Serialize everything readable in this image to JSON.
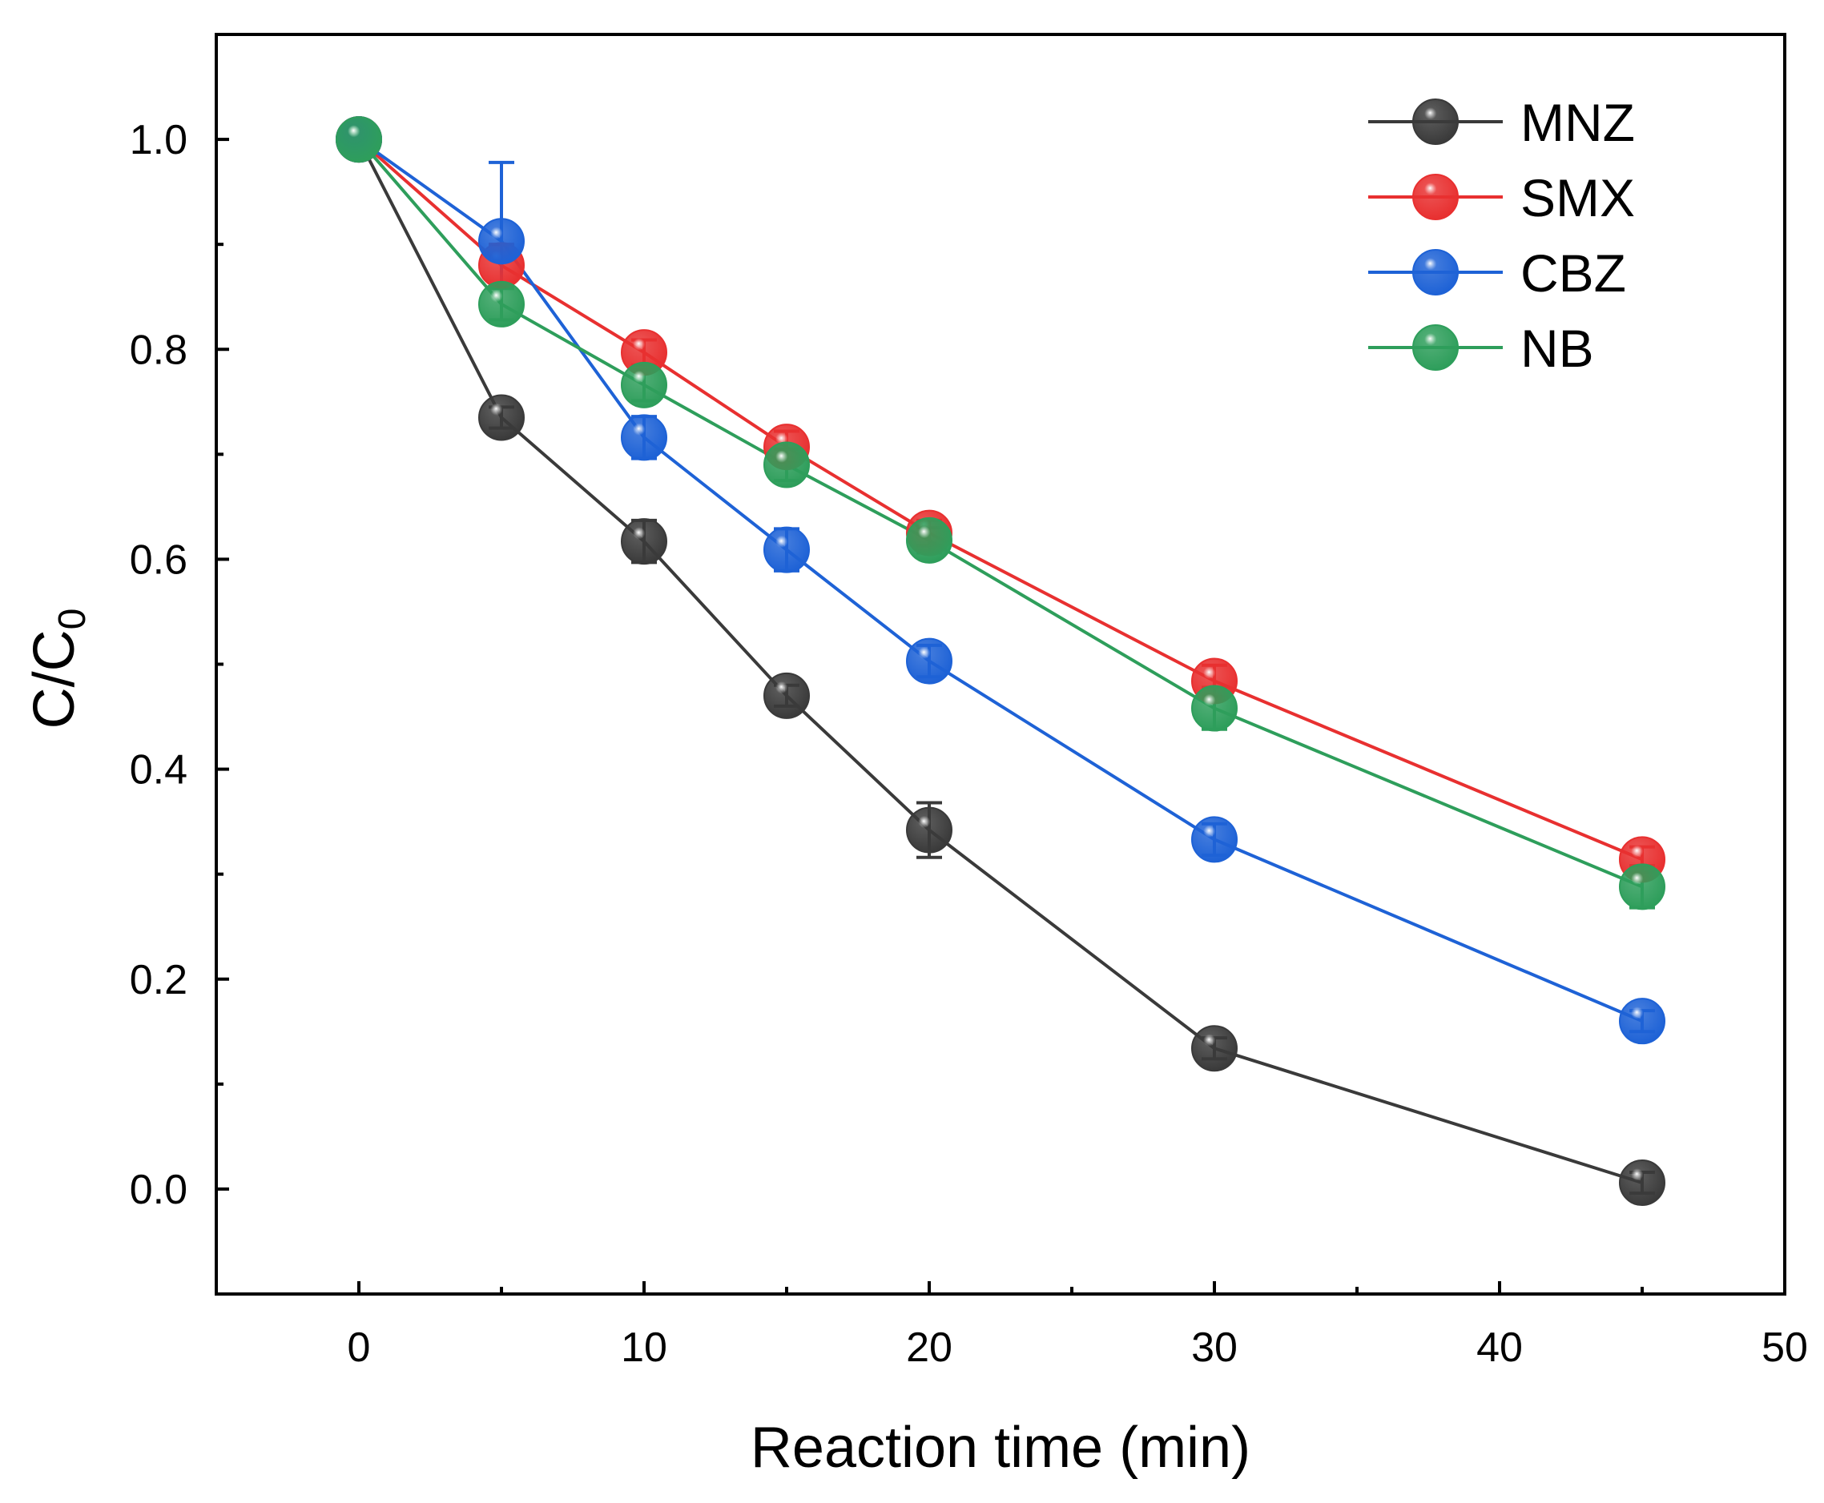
{
  "chart_data": {
    "type": "line",
    "title": "",
    "xlabel": "Reaction time (min)",
    "ylabel_main": "C/C",
    "ylabel_sub": "0",
    "xlim": [
      -5,
      50
    ],
    "ylim": [
      -0.1,
      1.1
    ],
    "x_ticks": [
      0,
      10,
      20,
      30,
      40,
      50
    ],
    "x_minor_ticks": [
      5,
      15,
      25,
      35,
      45
    ],
    "y_ticks": [
      0.0,
      0.2,
      0.4,
      0.6,
      0.8,
      1.0
    ],
    "y_minor_ticks": [
      0.1,
      0.3,
      0.5,
      0.7,
      0.9
    ],
    "x_tick_labels": [
      "0",
      "10",
      "20",
      "30",
      "40",
      "50"
    ],
    "y_tick_labels": [
      "0.0",
      "0.2",
      "0.4",
      "0.6",
      "0.8",
      "1.0"
    ],
    "grid": false,
    "legend_position": "top-right",
    "x": [
      0,
      5,
      10,
      15,
      20,
      30,
      45
    ],
    "series": [
      {
        "name": "MNZ",
        "color": "#3a3a3a",
        "values": [
          1.0,
          0.735,
          0.617,
          0.47,
          0.342,
          0.134,
          0.006
        ],
        "errors": [
          0.0,
          0.01,
          0.02,
          0.01,
          0.026,
          0.01,
          0.01
        ]
      },
      {
        "name": "SMX",
        "color": "#e83030",
        "values": [
          1.0,
          0.88,
          0.797,
          0.707,
          0.625,
          0.484,
          0.314
        ],
        "errors": [
          0.0,
          0.02,
          0.012,
          0.015,
          0.012,
          0.015,
          0.012
        ]
      },
      {
        "name": "CBZ",
        "color": "#1e62d6",
        "values": [
          1.0,
          0.903,
          0.716,
          0.609,
          0.503,
          0.333,
          0.16
        ],
        "errors": [
          0.0,
          0.075,
          0.02,
          0.02,
          0.015,
          0.015,
          0.01
        ]
      },
      {
        "name": "NB",
        "color": "#2e9e5b",
        "values": [
          1.0,
          0.843,
          0.766,
          0.69,
          0.618,
          0.458,
          0.288
        ],
        "errors": [
          0.0,
          0.015,
          0.015,
          0.015,
          0.012,
          0.02,
          0.02
        ]
      }
    ]
  }
}
